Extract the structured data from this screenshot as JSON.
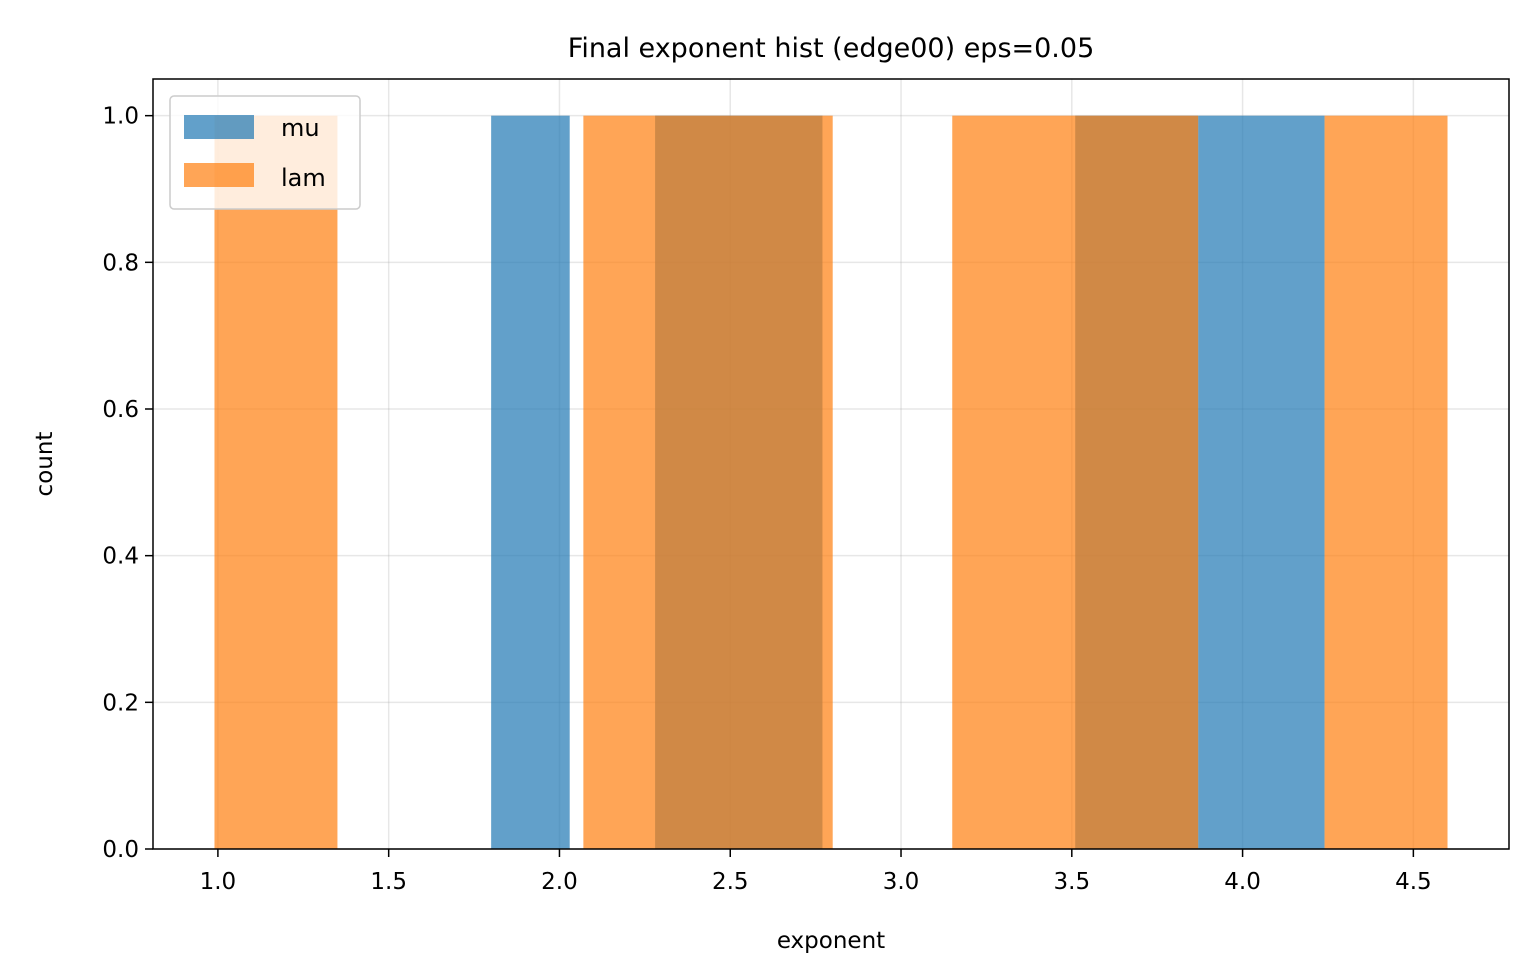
{
  "chart_data": {
    "type": "bar",
    "title": "Final exponent hist (edge00) eps=0.05",
    "xlabel": "exponent",
    "ylabel": "count",
    "xlim": [
      0.81,
      4.78
    ],
    "ylim": [
      0.0,
      1.05
    ],
    "xticks": [
      "1.0",
      "1.5",
      "2.0",
      "2.5",
      "3.0",
      "3.5",
      "4.0",
      "4.5"
    ],
    "yticks": [
      "0.0",
      "0.2",
      "0.4",
      "0.6",
      "0.8",
      "1.0"
    ],
    "grid": true,
    "legend_position": "upper-left",
    "series": [
      {
        "name": "mu",
        "color": "#1f77b4",
        "opacity": 0.7,
        "bins": [
          {
            "x0": 1.8,
            "x1": 2.03,
            "count": 1
          },
          {
            "x0": 2.28,
            "x1": 2.77,
            "count": 1
          },
          {
            "x0": 3.51,
            "x1": 3.87,
            "count": 1
          },
          {
            "x0": 3.87,
            "x1": 4.24,
            "count": 1
          }
        ]
      },
      {
        "name": "lam",
        "color": "#ff7f0e",
        "opacity": 0.7,
        "bins": [
          {
            "x0": 0.99,
            "x1": 1.35,
            "count": 1
          },
          {
            "x0": 2.07,
            "x1": 2.8,
            "count": 1
          },
          {
            "x0": 3.15,
            "x1": 3.87,
            "count": 1
          },
          {
            "x0": 4.24,
            "x1": 4.6,
            "count": 1
          }
        ]
      }
    ]
  }
}
